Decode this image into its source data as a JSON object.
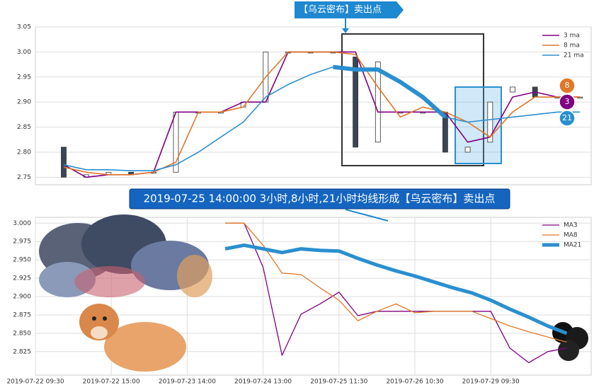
{
  "chart_data": [
    {
      "type": "candlestick",
      "categories": [
        null,
        null,
        null,
        null,
        null,
        null,
        null,
        null,
        null,
        null,
        null,
        null,
        null,
        null,
        null,
        null,
        null,
        null,
        null,
        null,
        null,
        null,
        null,
        null
      ],
      "open": [
        2.81,
        2.75,
        2.755,
        2.76,
        2.76,
        2.76,
        2.88,
        2.88,
        2.89,
        2.9,
        3.0,
        3.0,
        3.0,
        2.99,
        2.82,
        2.88,
        2.88,
        2.88,
        2.8,
        2.82,
        2.92,
        2.93,
        2.91,
        2.91
      ],
      "close": [
        2.75,
        2.755,
        2.76,
        2.755,
        2.76,
        2.88,
        2.88,
        2.88,
        2.9,
        3.0,
        3.0,
        3.0,
        3.0,
        2.81,
        2.98,
        2.88,
        2.88,
        2.8,
        2.81,
        2.9,
        2.93,
        2.91,
        2.91,
        2.91
      ],
      "series": [
        {
          "name": "3 ma",
          "color": "#800080",
          "values": [
            2.775,
            2.75,
            2.755,
            2.755,
            2.76,
            2.88,
            2.88,
            2.88,
            2.9,
            2.9,
            3.0,
            3.0,
            3.0,
            3.0,
            2.88,
            2.88,
            2.88,
            2.88,
            2.82,
            2.83,
            2.91,
            2.92,
            2.91,
            2.91
          ]
        },
        {
          "name": "8 ma",
          "color": "#e07828",
          "values": [
            2.77,
            2.76,
            2.755,
            2.755,
            2.76,
            2.78,
            2.88,
            2.88,
            2.89,
            2.95,
            3.0,
            3.0,
            3.0,
            2.995,
            2.93,
            2.87,
            2.89,
            2.88,
            2.86,
            2.83,
            2.88,
            2.91,
            2.91,
            2.91
          ]
        },
        {
          "name": "21 ma",
          "color": "#2a8fd0",
          "values": [
            2.775,
            2.765,
            2.765,
            2.763,
            2.763,
            2.775,
            2.8,
            2.83,
            2.86,
            2.91,
            2.935,
            2.955,
            2.97,
            2.965,
            2.965,
            2.94,
            2.91,
            2.87,
            2.86,
            2.865,
            2.87,
            2.875,
            2.88,
            2.88
          ]
        }
      ],
      "ylim": [
        2.735,
        3.05
      ],
      "yticks": [
        {
          "value": 2.75,
          "label": "2.75"
        },
        {
          "value": 2.8,
          "label": "2.80"
        },
        2.85,
        {
          "value": 2.9,
          "label": "2.90"
        },
        2.95,
        {
          "value": 3.0,
          "label": "3.00"
        },
        3.05
      ],
      "grid": true,
      "legend": "upper right",
      "badges": [
        {
          "label": "8",
          "color": "#e07828"
        },
        {
          "label": "3",
          "color": "#800080"
        },
        {
          "label": "21",
          "color": "#2a8fd0"
        }
      ],
      "annotations": [
        "【乌云密布】卖出点",
        "2019-07-25 14:00:00 3小时,8小时,21小时均线形成【乌云密布】卖出点"
      ]
    },
    {
      "type": "line",
      "categories": [
        "2019-07-22 09:30",
        null,
        null,
        null,
        "2019-07-22 15:00",
        null,
        null,
        null,
        "2019-07-23 14:00",
        null,
        null,
        null,
        "2019-07-24 13:00",
        null,
        null,
        null,
        "2019-07-25 11:30",
        null,
        null,
        null,
        "2019-07-26 10:30",
        null,
        null,
        null,
        "2019-07-29 09:30",
        null,
        null,
        null,
        null
      ],
      "series": [
        {
          "name": "MA3",
          "color": "#800080",
          "width": 1.3,
          "values": [
            null,
            null,
            null,
            null,
            null,
            null,
            null,
            null,
            null,
            null,
            3.0,
            3.0,
            2.94,
            2.82,
            2.876,
            2.89,
            2.906,
            2.874,
            2.88,
            2.88,
            2.88,
            2.88,
            2.88,
            2.88,
            2.88,
            2.83,
            2.81,
            2.825,
            2.83
          ]
        },
        {
          "name": "MA8",
          "color": "#e07828",
          "width": 1.3,
          "values": [
            null,
            null,
            null,
            null,
            null,
            null,
            null,
            null,
            null,
            null,
            3.0,
            3.0,
            2.97,
            2.932,
            2.93,
            2.912,
            2.895,
            2.867,
            2.88,
            2.89,
            2.878,
            2.88,
            2.88,
            2.88,
            2.87,
            2.86,
            2.852,
            2.845,
            2.838
          ]
        },
        {
          "name": "MA21",
          "color": "#2a8fd0",
          "width": 5,
          "values": [
            null,
            null,
            null,
            null,
            null,
            null,
            null,
            null,
            null,
            null,
            2.965,
            2.97,
            2.965,
            2.96,
            2.965,
            2.963,
            2.962,
            2.952,
            2.943,
            2.935,
            2.928,
            2.92,
            2.912,
            2.905,
            2.895,
            2.883,
            2.872,
            2.86,
            2.85
          ]
        }
      ],
      "ylim": [
        2.793,
        3.008
      ],
      "yticks": [
        2.825,
        {
          "value": 2.85,
          "label": "2.850"
        },
        2.875,
        {
          "value": 2.9,
          "label": "2.900"
        },
        2.925,
        {
          "value": 2.95,
          "label": "2.950"
        },
        2.975,
        {
          "value": 3.0,
          "label": "3.000"
        }
      ],
      "grid": true,
      "legend": "upper right"
    }
  ]
}
